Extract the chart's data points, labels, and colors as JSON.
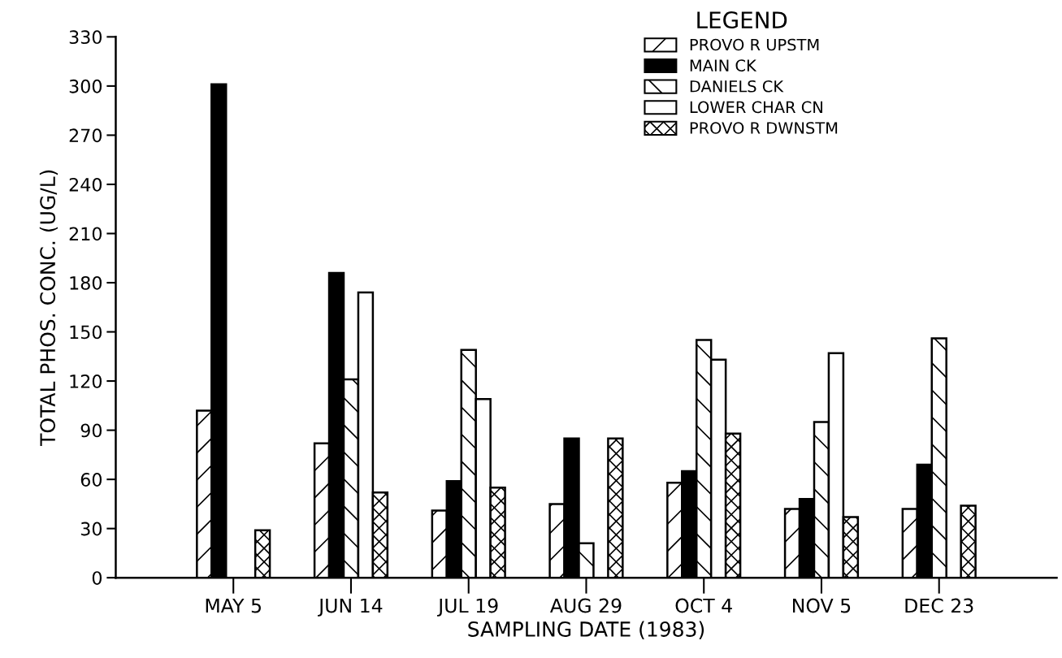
{
  "chart_data": {
    "type": "bar",
    "xlabel": "SAMPLING DATE (1983)",
    "ylabel": "TOTAL PHOS. CONC. (UG/L)",
    "legend_title": "LEGEND",
    "categories": [
      "MAY 5",
      "JUN 14",
      "JUL 19",
      "AUG 29",
      "OCT 4",
      "NOV 5",
      "DEC 23"
    ],
    "series": [
      {
        "name": "PROVO R UPSTM",
        "color": "#000000",
        "values": [
          102,
          82,
          41,
          45,
          58,
          42,
          42
        ]
      },
      {
        "name": "MAIN CK",
        "color": "#000000",
        "values": [
          301,
          186,
          59,
          85,
          65,
          48,
          69
        ]
      },
      {
        "name": "DANIELS CK",
        "color": "#000000",
        "values": [
          null,
          121,
          139,
          21,
          145,
          95,
          146
        ]
      },
      {
        "name": "LOWER CHAR CN",
        "color": "#ffffff",
        "values": [
          null,
          174,
          109,
          null,
          133,
          137,
          null
        ]
      },
      {
        "name": "PROVO R DWNSTM",
        "color": "#000000",
        "values": [
          29,
          52,
          55,
          85,
          88,
          37,
          44
        ]
      }
    ],
    "ylim": [
      0,
      330
    ],
    "yticks": [
      0,
      30,
      60,
      90,
      120,
      150,
      180,
      210,
      240,
      270,
      300,
      330
    ],
    "grid": false,
    "legend": "top right"
  }
}
